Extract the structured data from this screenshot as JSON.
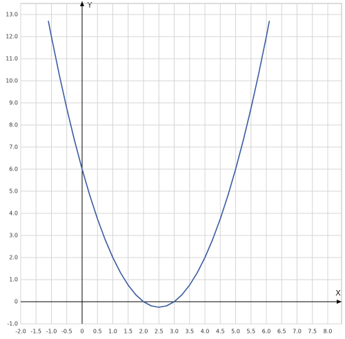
{
  "chart_data": {
    "type": "line",
    "x_label": "X",
    "y_label": "Y",
    "xlim": [
      -2,
      8
    ],
    "ylim": [
      -1,
      13
    ],
    "xticks": [
      {
        "value": -2,
        "label": "-2.0"
      },
      -1.5,
      {
        "value": -1,
        "label": "-1.0"
      },
      -0.5,
      0,
      0.5,
      {
        "value": 1,
        "label": "1.0"
      },
      1.5,
      {
        "value": 2,
        "label": "2.0"
      },
      2.5,
      {
        "value": 3,
        "label": "3.0"
      },
      3.5,
      {
        "value": 4,
        "label": "4.0"
      },
      4.5,
      {
        "value": 5,
        "label": "5.0"
      },
      5.5,
      {
        "value": 6,
        "label": "6.0"
      },
      6.5,
      {
        "value": 7,
        "label": "7.0"
      },
      7.5,
      {
        "value": 8,
        "label": "8.0"
      }
    ],
    "yticks": [
      {
        "value": -1,
        "label": "-1.0"
      },
      0,
      {
        "value": 1,
        "label": "1.0"
      },
      {
        "value": 2,
        "label": "2.0"
      },
      {
        "value": 3,
        "label": "3.0"
      },
      {
        "value": 4,
        "label": "4.0"
      },
      {
        "value": 5,
        "label": "5.0"
      },
      {
        "value": 6,
        "label": "6.0"
      },
      {
        "value": 7,
        "label": "7.0"
      },
      {
        "value": 8,
        "label": "8.0"
      },
      {
        "value": 9,
        "label": "9.0"
      },
      {
        "value": 10,
        "label": "10.0"
      },
      {
        "value": 11,
        "label": "11.0"
      },
      {
        "value": 12,
        "label": "12.0"
      },
      {
        "value": 13,
        "label": "13.0"
      }
    ],
    "grid": true,
    "x": [
      -1.1,
      -1,
      -0.75,
      -0.5,
      -0.25,
      0,
      0.25,
      0.5,
      0.75,
      1,
      1.25,
      1.5,
      1.75,
      2,
      2.25,
      2.5,
      2.75,
      3,
      3.25,
      3.5,
      3.75,
      4,
      4.25,
      4.5,
      4.75,
      5,
      5.25,
      5.5,
      5.75,
      6,
      6.1
    ],
    "series": [
      {
        "color": "#3a5ba0",
        "values": [
          12.71,
          12,
          10.3125,
          8.75,
          7.3125,
          6,
          4.8125,
          3.75,
          2.8125,
          2,
          1.3125,
          0.75,
          0.3125,
          0,
          -0.1875,
          -0.25,
          -0.1875,
          0,
          0.3125,
          0.75,
          1.3125,
          2,
          2.8125,
          3.75,
          4.8125,
          6,
          7.3125,
          8.75,
          10.3125,
          12,
          12.71
        ]
      }
    ]
  }
}
